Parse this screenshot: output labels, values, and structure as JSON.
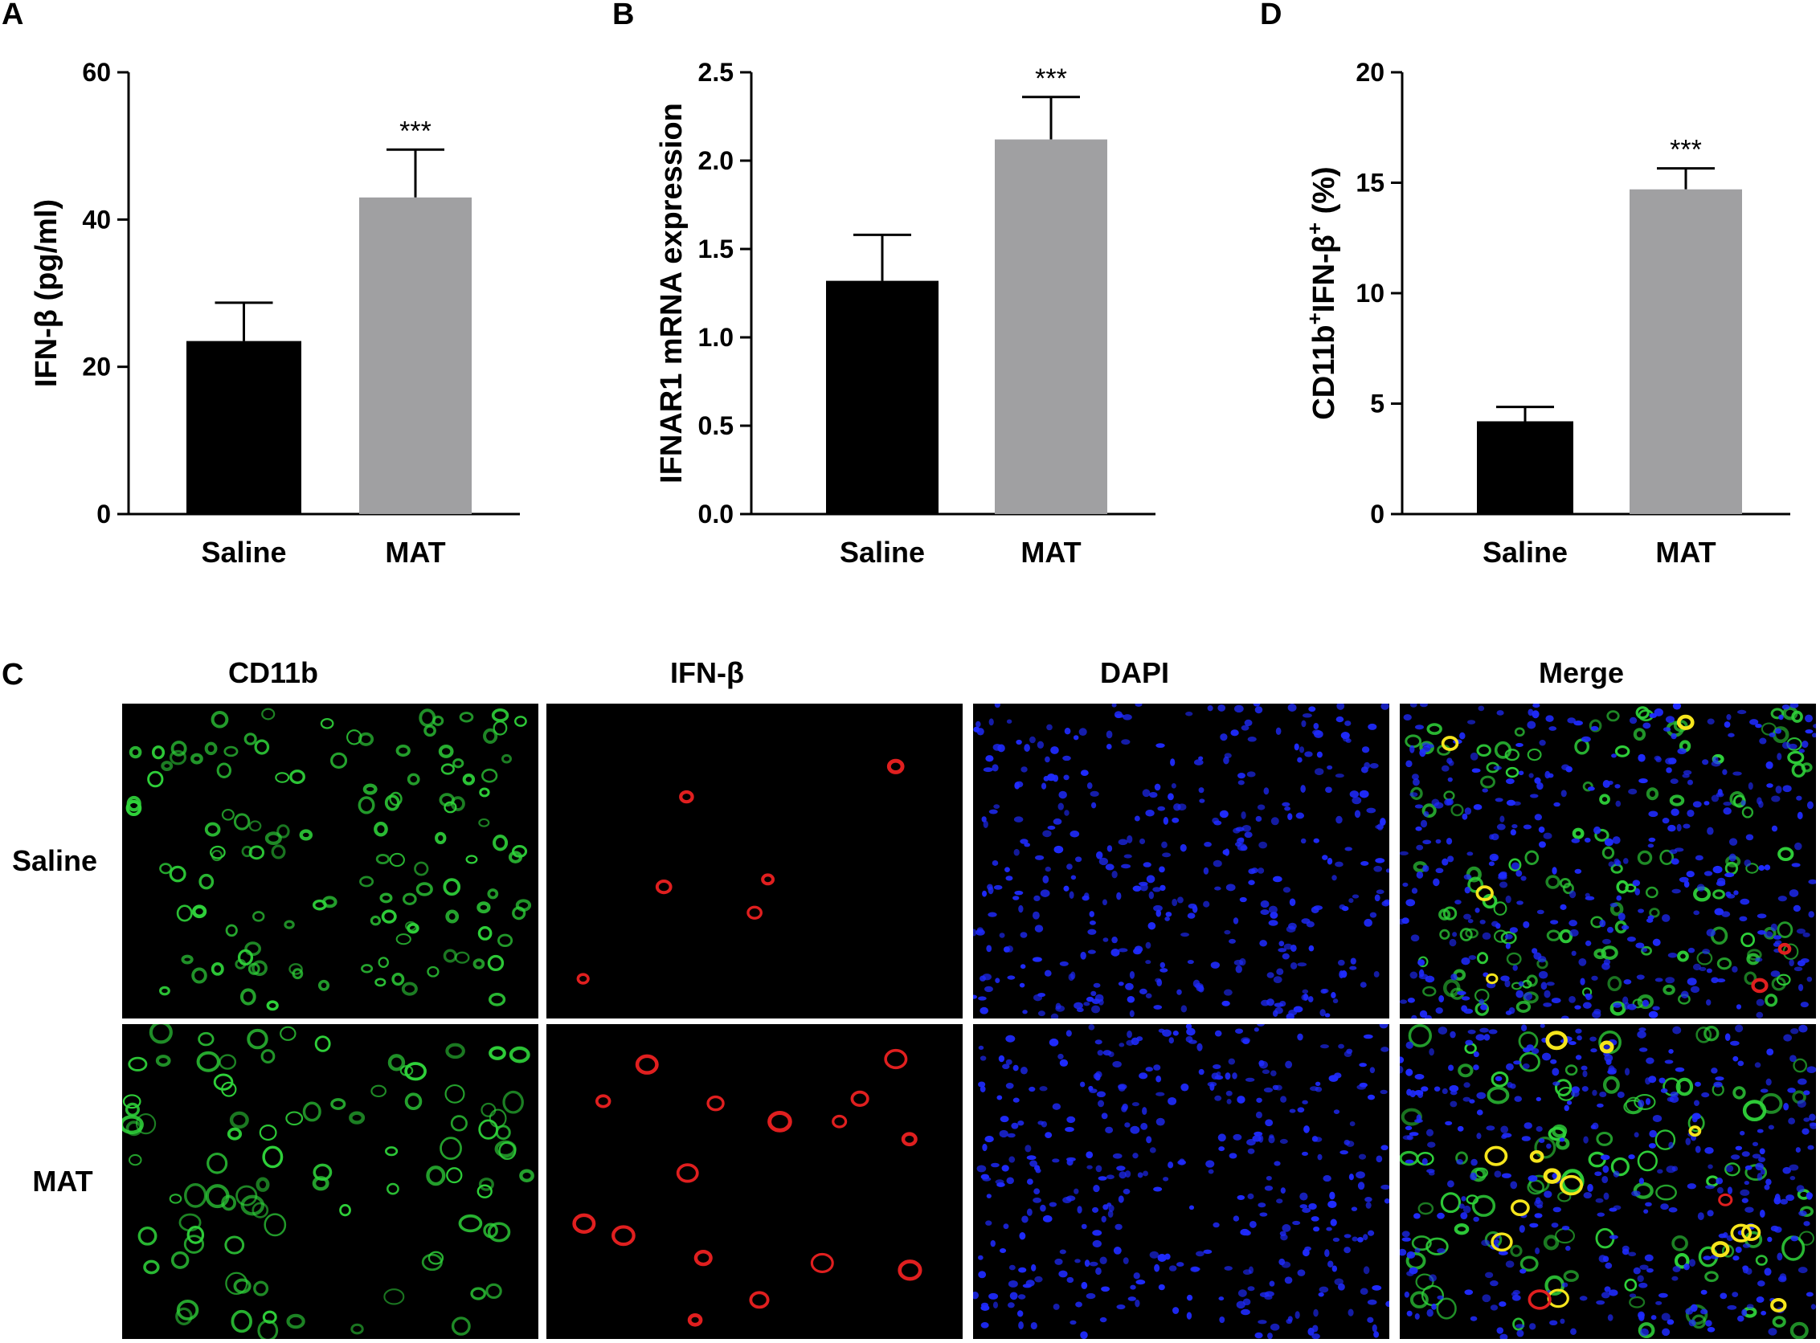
{
  "panel_labels": {
    "a": "A",
    "b": "B",
    "c": "C",
    "d": "D"
  },
  "chart_data": [
    {
      "type": "bar",
      "panel": "A",
      "categories": [
        "Saline",
        "MAT"
      ],
      "values": [
        23.5,
        43
      ],
      "errors": [
        5.2,
        6.5
      ],
      "significance": [
        "",
        "***"
      ],
      "ylabel": "IFN-β (pg/ml)",
      "ylim": [
        0,
        60
      ],
      "yticks": [
        0,
        20,
        40,
        60
      ],
      "colors": [
        "#000000",
        "#a0a0a2"
      ]
    },
    {
      "type": "bar",
      "panel": "B",
      "categories": [
        "Saline",
        "MAT"
      ],
      "values": [
        1.32,
        2.12
      ],
      "errors": [
        0.26,
        0.24
      ],
      "significance": [
        "",
        "***"
      ],
      "ylabel": "IFNAR1 mRNA expression",
      "ylim": [
        0,
        2.5
      ],
      "yticks": [
        "0.0",
        "0.5",
        "1.0",
        "1.5",
        "2.0",
        "2.5"
      ],
      "colors": [
        "#000000",
        "#a0a0a2"
      ]
    },
    {
      "type": "bar",
      "panel": "D",
      "categories": [
        "Saline",
        "MAT"
      ],
      "values": [
        4.2,
        14.7
      ],
      "errors": [
        0.65,
        0.95
      ],
      "significance": [
        "",
        "***"
      ],
      "ylabel_parts": [
        "CD11b",
        "+",
        "IFN-β",
        "+",
        " (%)"
      ],
      "ylim": [
        0,
        20
      ],
      "yticks": [
        0,
        5,
        10,
        15,
        20
      ],
      "colors": [
        "#000000",
        "#a0a0a2"
      ]
    }
  ],
  "micrographs": {
    "columns": [
      "CD11b",
      "IFN-β",
      "DAPI",
      "Merge"
    ],
    "rows": [
      "Saline",
      "MAT"
    ],
    "channel_colors": {
      "CD11b": "#2fd23a",
      "IFN-β": "#e01f1f",
      "DAPI": "#1f2bff",
      "Merge": "mixed"
    }
  }
}
